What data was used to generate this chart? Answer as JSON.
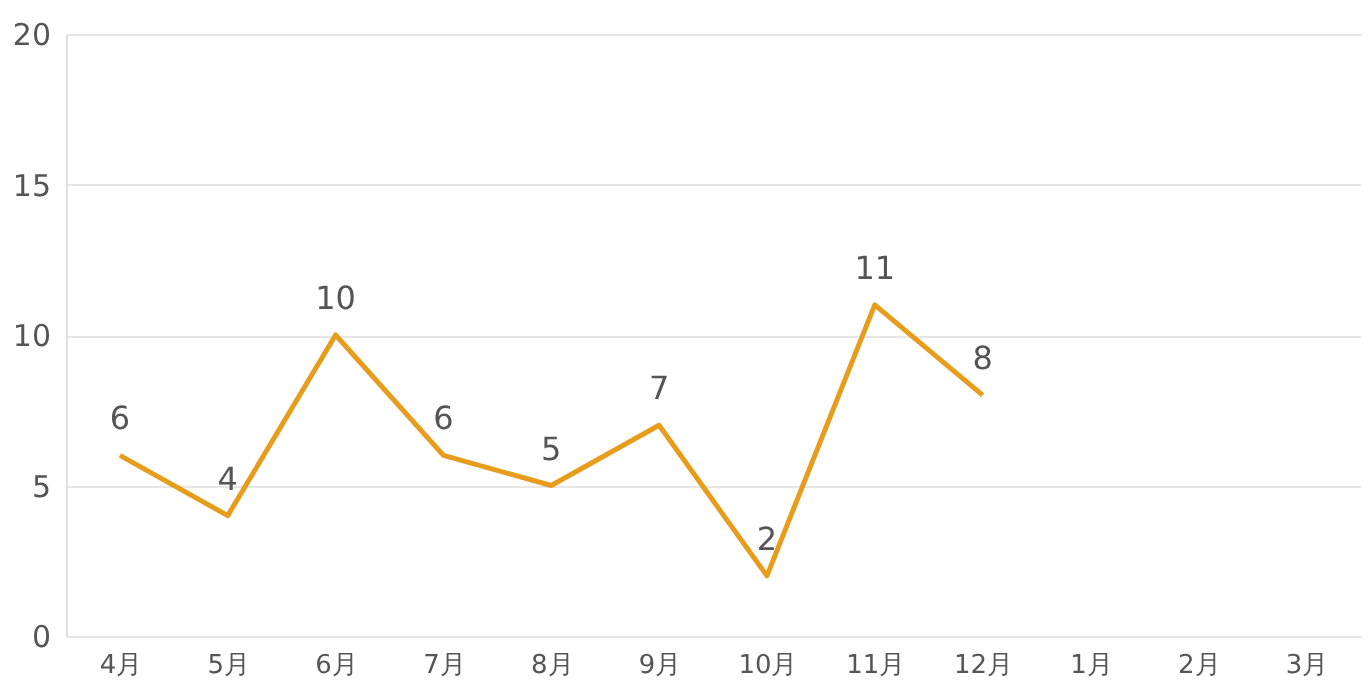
{
  "chart_data": {
    "type": "line",
    "categories": [
      "4月",
      "5月",
      "6月",
      "7月",
      "8月",
      "9月",
      "10月",
      "11月",
      "12月",
      "1月",
      "2月",
      "3月"
    ],
    "series": [
      {
        "color": "#e89c1c",
        "values": [
          6,
          4,
          10,
          6,
          5,
          7,
          2,
          11,
          8,
          null,
          null,
          null
        ]
      }
    ],
    "ylim": [
      0,
      20
    ],
    "yticks": [
      0,
      5,
      10,
      15,
      20
    ],
    "grid": "y",
    "data_labels": true,
    "marker": "none",
    "line_style": "solid"
  }
}
